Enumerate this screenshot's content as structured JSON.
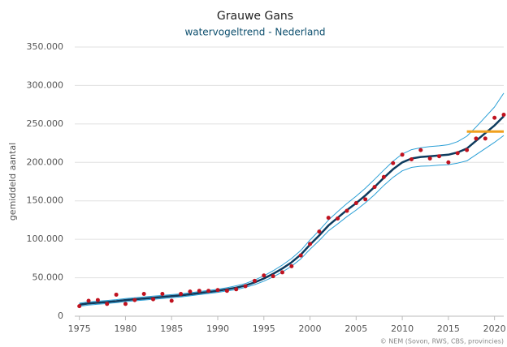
{
  "chart_data": {
    "type": "line",
    "title": "Grauwe Gans",
    "subtitle": "watervogeltrend - Nederland",
    "y_label": "gemiddeld aantal",
    "credit": "© NEM (Sovon, RWS, CBS, provincies)",
    "x": [
      1975,
      1976,
      1977,
      1978,
      1979,
      1980,
      1981,
      1982,
      1983,
      1984,
      1985,
      1986,
      1987,
      1988,
      1989,
      1990,
      1991,
      1992,
      1993,
      1994,
      1995,
      1996,
      1997,
      1998,
      1999,
      2000,
      2001,
      2002,
      2003,
      2004,
      2005,
      2006,
      2007,
      2008,
      2009,
      2010,
      2011,
      2012,
      2013,
      2014,
      2015,
      2016,
      2017,
      2018,
      2019,
      2020,
      2021
    ],
    "series": [
      {
        "mark": "line",
        "color": "#2a9fd6",
        "width": 1,
        "values": [
          17000,
          18500,
          19500,
          20500,
          21500,
          23000,
          24000,
          25000,
          26000,
          27000,
          28000,
          29000,
          30500,
          32000,
          33500,
          35000,
          37000,
          39500,
          42500,
          47000,
          52500,
          59000,
          66500,
          75000,
          85500,
          99000,
          111500,
          125000,
          136000,
          146500,
          156000,
          166500,
          178000,
          190000,
          201500,
          211000,
          216500,
          219000,
          220500,
          221500,
          223000,
          227000,
          234000,
          246000,
          259000,
          272000,
          290000
        ]
      },
      {
        "mark": "line",
        "color": "#2a9fd6",
        "width": 1,
        "values": [
          13000,
          14500,
          15500,
          16500,
          17500,
          19000,
          20000,
          21000,
          22000,
          23000,
          24000,
          25000,
          26500,
          28000,
          29500,
          31000,
          33000,
          34500,
          37500,
          41000,
          45500,
          51000,
          57500,
          65000,
          74500,
          87000,
          98500,
          111000,
          120000,
          129500,
          138000,
          147500,
          158000,
          170000,
          180500,
          189000,
          193500,
          195000,
          195500,
          196500,
          197000,
          199000,
          202000,
          210000,
          218000,
          226000,
          235000
        ]
      },
      {
        "mark": "line",
        "color": "#0d3b5e",
        "width": 2.5,
        "values": [
          15000,
          16500,
          17500,
          18500,
          19500,
          21000,
          22000,
          23000,
          24000,
          25000,
          26000,
          27000,
          28500,
          30000,
          31500,
          33000,
          35000,
          37000,
          40000,
          44000,
          49000,
          55000,
          62000,
          70000,
          80000,
          93000,
          105000,
          118000,
          128000,
          138000,
          147000,
          157000,
          168000,
          180000,
          191000,
          200000,
          205000,
          207000,
          208000,
          209000,
          210000,
          213000,
          218000,
          228000,
          238000,
          248000,
          260000
        ]
      },
      {
        "mark": "points",
        "color": "#c0121f",
        "values": [
          13000,
          20000,
          21000,
          16000,
          28000,
          16000,
          21000,
          29000,
          22000,
          29000,
          20000,
          29000,
          32000,
          33000,
          33000,
          34000,
          33000,
          35000,
          39000,
          46000,
          53000,
          52000,
          57000,
          65000,
          79000,
          94000,
          110000,
          128000,
          127000,
          137000,
          147000,
          152000,
          168000,
          181000,
          199000,
          210000,
          204000,
          216000,
          205000,
          208000,
          200000,
          212000,
          216000,
          231000,
          231000,
          258000,
          262000
        ]
      }
    ],
    "reference": {
      "x": [
        2017,
        2021
      ],
      "values": [
        240000,
        240000
      ],
      "color": "#f0a01e"
    },
    "xlim": [
      1974.5,
      2021
    ],
    "ylim": [
      0,
      350000
    ],
    "xticks": [
      1975,
      1980,
      1985,
      1990,
      1995,
      2000,
      2005,
      2010,
      2015,
      2020
    ],
    "yticks": [
      0,
      {
        "value": 50000,
        "label": "50.000"
      },
      {
        "value": 100000,
        "label": "100.000"
      },
      {
        "value": 150000,
        "label": "150.000"
      },
      {
        "value": 200000,
        "label": "200.000"
      },
      {
        "value": 250000,
        "label": "250.000"
      },
      {
        "value": 300000,
        "label": "300.000"
      },
      {
        "value": 350000,
        "label": "350.000"
      }
    ],
    "grid": true
  }
}
